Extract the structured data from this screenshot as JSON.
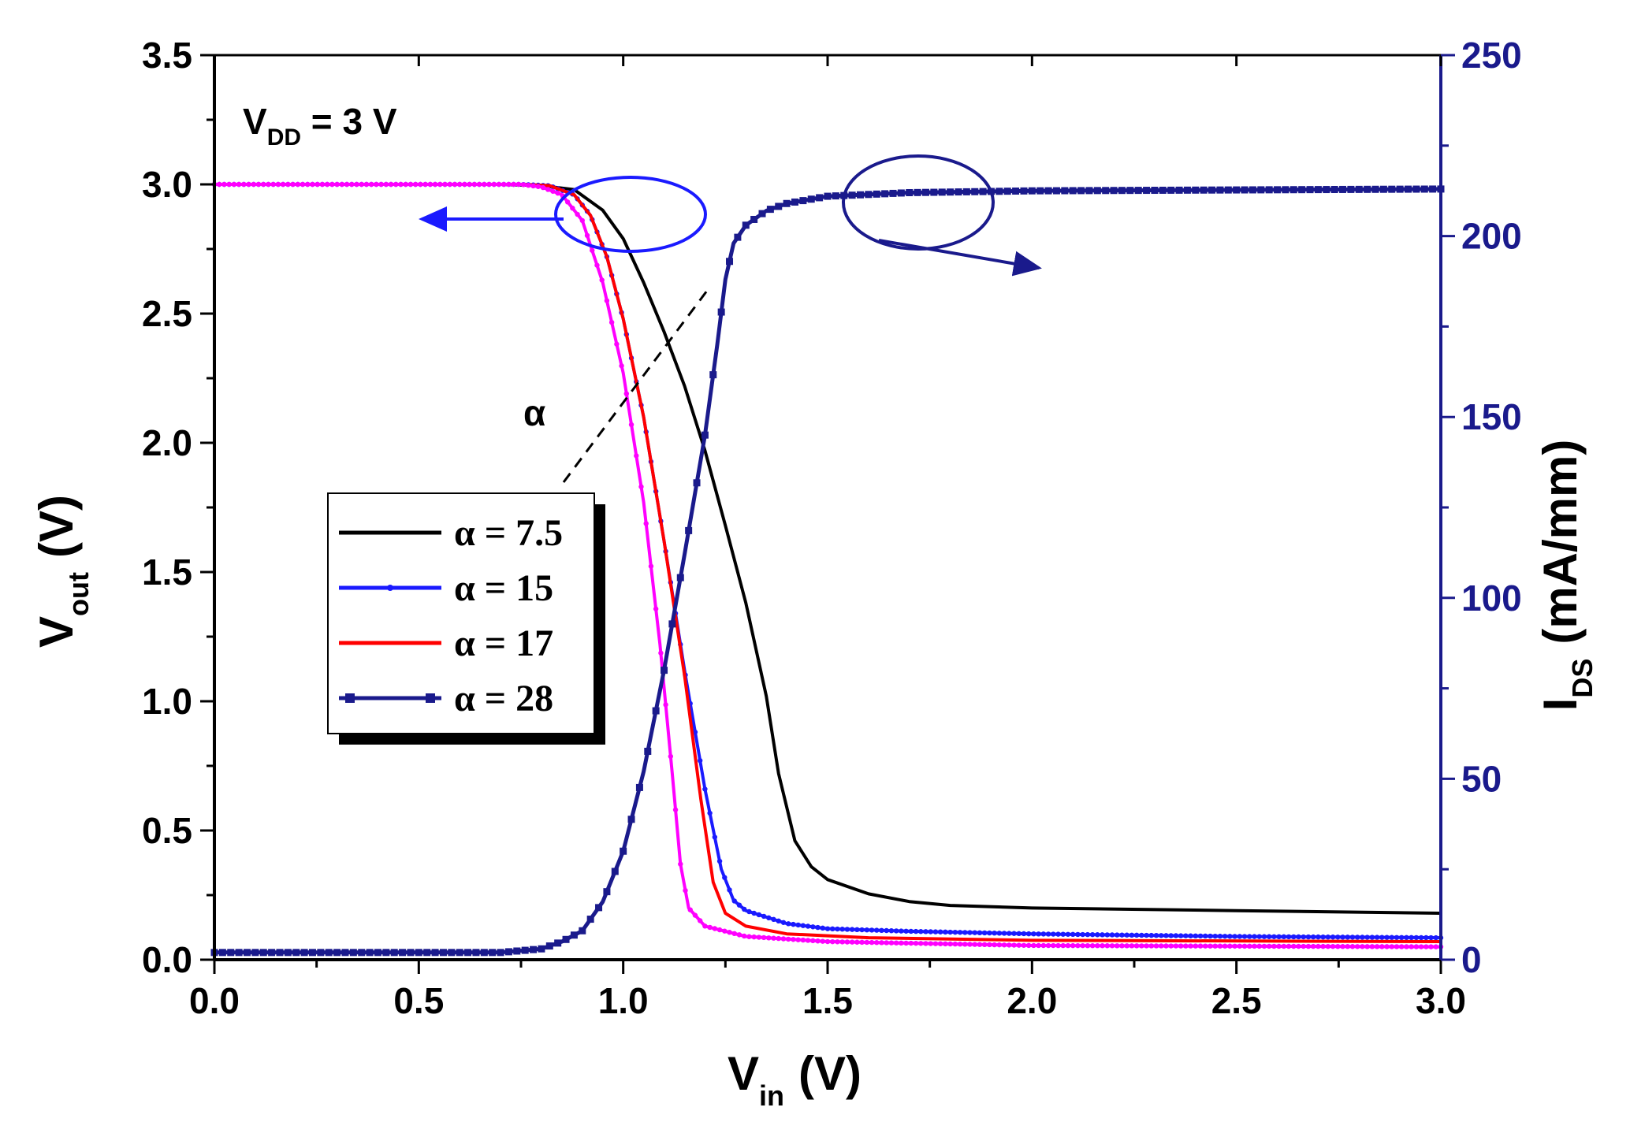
{
  "chart_data": {
    "type": "line",
    "x_label": {
      "main": "V",
      "sub": "in",
      "unit": "(V)"
    },
    "y_left_label": {
      "main": "V",
      "sub": "out",
      "unit": "(V)"
    },
    "y_right_label": {
      "main": "I",
      "sub": "DS",
      "unit": "(mA/mm)"
    },
    "xlim": [
      0,
      3
    ],
    "ylim_left": [
      0,
      3.5
    ],
    "ylim_right": [
      0,
      250
    ],
    "x_ticks": [
      "0.0",
      "0.5",
      "1.0",
      "1.5",
      "2.0",
      "2.5",
      "3.0"
    ],
    "y_left_ticks": [
      "0.0",
      "0.5",
      "1.0",
      "1.5",
      "2.0",
      "2.5",
      "3.0",
      "3.5"
    ],
    "y_right_ticks": [
      "0",
      "50",
      "100",
      "150",
      "200",
      "250"
    ],
    "annotation_vdd": {
      "main": "V",
      "sub": "DD",
      "rest": " = 3 V"
    },
    "annotation_alpha": "α",
    "series": [
      {
        "name": "α = 7.5",
        "axis": "left",
        "color": "#000000",
        "style": "solid",
        "points": [
          [
            0,
            3.0
          ],
          [
            0.7,
            3.0
          ],
          [
            0.8,
            2.995
          ],
          [
            0.88,
            2.98
          ],
          [
            0.95,
            2.9
          ],
          [
            1.0,
            2.79
          ],
          [
            1.05,
            2.62
          ],
          [
            1.1,
            2.43
          ],
          [
            1.15,
            2.22
          ],
          [
            1.2,
            1.97
          ],
          [
            1.25,
            1.68
          ],
          [
            1.3,
            1.38
          ],
          [
            1.35,
            1.02
          ],
          [
            1.38,
            0.72
          ],
          [
            1.42,
            0.46
          ],
          [
            1.46,
            0.36
          ],
          [
            1.5,
            0.31
          ],
          [
            1.6,
            0.255
          ],
          [
            1.7,
            0.225
          ],
          [
            1.8,
            0.21
          ],
          [
            2.0,
            0.2
          ],
          [
            2.5,
            0.19
          ],
          [
            3.0,
            0.18
          ]
        ]
      },
      {
        "name": "α = 15",
        "axis": "left",
        "color": "#1a1aff",
        "style": "solid-dots",
        "points": [
          [
            0,
            3.0
          ],
          [
            0.75,
            3.0
          ],
          [
            0.82,
            2.995
          ],
          [
            0.88,
            2.96
          ],
          [
            0.92,
            2.88
          ],
          [
            0.96,
            2.72
          ],
          [
            1.0,
            2.48
          ],
          [
            1.05,
            2.1
          ],
          [
            1.1,
            1.62
          ],
          [
            1.15,
            1.12
          ],
          [
            1.2,
            0.66
          ],
          [
            1.24,
            0.35
          ],
          [
            1.27,
            0.23
          ],
          [
            1.3,
            0.19
          ],
          [
            1.4,
            0.14
          ],
          [
            1.5,
            0.12
          ],
          [
            1.7,
            0.11
          ],
          [
            2.0,
            0.1
          ],
          [
            2.5,
            0.09
          ],
          [
            3.0,
            0.085
          ]
        ]
      },
      {
        "name": "α = 17",
        "axis": "left",
        "color": "#ff0000",
        "style": "solid",
        "points": [
          [
            0,
            3.0
          ],
          [
            0.75,
            3.0
          ],
          [
            0.82,
            2.995
          ],
          [
            0.88,
            2.96
          ],
          [
            0.92,
            2.88
          ],
          [
            0.96,
            2.72
          ],
          [
            1.0,
            2.48
          ],
          [
            1.05,
            2.1
          ],
          [
            1.1,
            1.62
          ],
          [
            1.15,
            1.1
          ],
          [
            1.19,
            0.62
          ],
          [
            1.22,
            0.3
          ],
          [
            1.25,
            0.18
          ],
          [
            1.3,
            0.13
          ],
          [
            1.4,
            0.1
          ],
          [
            1.6,
            0.085
          ],
          [
            2.0,
            0.075
          ],
          [
            3.0,
            0.07
          ]
        ]
      },
      {
        "name": "magenta",
        "legend": false,
        "axis": "left",
        "color": "#ff00ff",
        "style": "solid-dots",
        "points": [
          [
            0,
            3.0
          ],
          [
            0.75,
            3.0
          ],
          [
            0.8,
            2.99
          ],
          [
            0.85,
            2.96
          ],
          [
            0.9,
            2.86
          ],
          [
            0.95,
            2.62
          ],
          [
            1.0,
            2.27
          ],
          [
            1.05,
            1.77
          ],
          [
            1.09,
            1.22
          ],
          [
            1.12,
            0.72
          ],
          [
            1.14,
            0.37
          ],
          [
            1.16,
            0.2
          ],
          [
            1.2,
            0.13
          ],
          [
            1.3,
            0.09
          ],
          [
            1.5,
            0.07
          ],
          [
            2.0,
            0.055
          ],
          [
            3.0,
            0.05
          ]
        ]
      },
      {
        "name": "α = 28",
        "axis": "right",
        "color": "#1a1a8c",
        "style": "line-squares",
        "points": [
          [
            0,
            2
          ],
          [
            0.7,
            2
          ],
          [
            0.8,
            3
          ],
          [
            0.85,
            5
          ],
          [
            0.9,
            8
          ],
          [
            0.95,
            16
          ],
          [
            1.0,
            30
          ],
          [
            1.05,
            52
          ],
          [
            1.1,
            80
          ],
          [
            1.15,
            112
          ],
          [
            1.2,
            145
          ],
          [
            1.23,
            170
          ],
          [
            1.25,
            188
          ],
          [
            1.27,
            198
          ],
          [
            1.3,
            203
          ],
          [
            1.35,
            207
          ],
          [
            1.4,
            209
          ],
          [
            1.5,
            211
          ],
          [
            1.7,
            212
          ],
          [
            2.0,
            212.5
          ],
          [
            3.0,
            213
          ]
        ]
      }
    ]
  }
}
